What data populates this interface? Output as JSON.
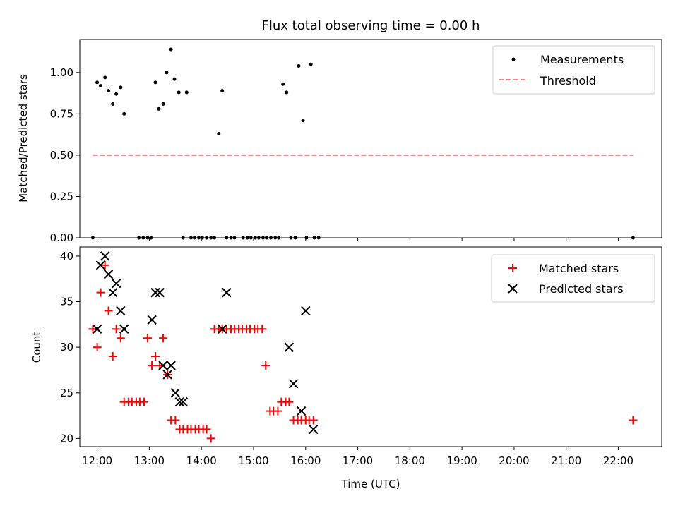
{
  "figure": {
    "title": "Flux total observing time = 0.00 h"
  },
  "chart_data": [
    {
      "type": "scatter",
      "panel": "top",
      "ylabel": "Matched/Predicted stars",
      "xlim": [
        "11:40",
        "22:50"
      ],
      "ylim": [
        0,
        1.2
      ],
      "yticks": [
        "0.00",
        "0.25",
        "0.50",
        "0.75",
        "1.00"
      ],
      "ytick_values": [
        0,
        0.25,
        0.5,
        0.75,
        1.0
      ],
      "grid": false,
      "legend": {
        "position": "upper right",
        "entries": [
          "Measurements",
          "Threshold"
        ]
      },
      "series": [
        {
          "name": "Measurements",
          "color": "#000000",
          "marker": "dot",
          "x": [
            "11:55",
            "12:00",
            "12:04",
            "12:09",
            "12:13",
            "12:18",
            "12:22",
            "12:27",
            "12:31",
            "12:48",
            "12:53",
            "12:58",
            "13:02",
            "13:07",
            "13:11",
            "13:16",
            "13:20",
            "13:25",
            "13:29",
            "13:34",
            "13:39",
            "13:43",
            "13:48",
            "13:52",
            "13:57",
            "14:01",
            "14:06",
            "14:11",
            "14:15",
            "14:20",
            "14:24",
            "14:29",
            "14:34",
            "14:38",
            "14:48",
            "14:53",
            "14:57",
            "15:02",
            "15:06",
            "15:11",
            "15:15",
            "15:20",
            "15:25",
            "15:29",
            "15:34",
            "15:38",
            "15:43",
            "15:48",
            "15:52",
            "15:57",
            "16:01",
            "16:06",
            "16:10",
            "16:15",
            "22:17"
          ],
          "y": [
            0.0,
            0.94,
            0.92,
            0.97,
            0.89,
            0.81,
            0.87,
            0.91,
            0.75,
            0.0,
            0.0,
            0.0,
            0.0,
            0.94,
            0.78,
            0.81,
            1.0,
            1.14,
            0.96,
            0.88,
            0.0,
            0.88,
            0.0,
            0.0,
            0.0,
            0.0,
            0.0,
            0.0,
            0.0,
            0.63,
            0.89,
            0.0,
            0.0,
            0.0,
            0.0,
            0.0,
            0.0,
            0.0,
            0.0,
            0.0,
            0.0,
            0.0,
            0.0,
            0.0,
            0.93,
            0.88,
            0.0,
            0.0,
            1.04,
            0.71,
            0.0,
            1.05,
            0.0,
            0.0,
            0.0
          ]
        },
        {
          "name": "Threshold",
          "color": "#ff7f7f",
          "style": "dashed",
          "x": [
            "11:55",
            "22:17"
          ],
          "y": [
            0.5,
            0.5
          ]
        }
      ]
    },
    {
      "type": "scatter",
      "panel": "bottom",
      "xlabel": "Time (UTC)",
      "ylabel": "Count",
      "xlim": [
        "11:40",
        "22:50"
      ],
      "ylim": [
        19.1,
        41.0
      ],
      "xticks": [
        "12:00",
        "13:00",
        "14:00",
        "15:00",
        "16:00",
        "17:00",
        "18:00",
        "19:00",
        "20:00",
        "21:00",
        "22:00"
      ],
      "yticks": [
        "20",
        "25",
        "30",
        "35",
        "40"
      ],
      "ytick_values": [
        20,
        25,
        30,
        35,
        40
      ],
      "grid": false,
      "legend": {
        "position": "upper right",
        "entries": [
          "Matched stars",
          "Predicted stars"
        ]
      },
      "series": [
        {
          "name": "Matched stars",
          "color": "#ff0000",
          "marker": "plus",
          "x": [
            "11:55",
            "12:00",
            "12:04",
            "12:09",
            "12:13",
            "12:18",
            "12:22",
            "12:27",
            "12:31",
            "12:36",
            "12:40",
            "12:45",
            "12:49",
            "12:54",
            "12:58",
            "13:03",
            "13:07",
            "13:12",
            "13:16",
            "13:21",
            "13:25",
            "13:30",
            "13:35",
            "13:39",
            "13:44",
            "13:48",
            "13:53",
            "13:57",
            "14:02",
            "14:06",
            "14:11",
            "14:15",
            "14:20",
            "14:24",
            "14:29",
            "14:34",
            "14:38",
            "14:43",
            "14:47",
            "14:52",
            "14:56",
            "15:01",
            "15:05",
            "15:10",
            "15:14",
            "15:19",
            "15:23",
            "15:28",
            "15:32",
            "15:37",
            "15:41",
            "15:46",
            "15:51",
            "15:55",
            "16:00",
            "16:04",
            "16:09",
            "22:17"
          ],
          "y": [
            32,
            30,
            36,
            39,
            34,
            29,
            32,
            31,
            24,
            24,
            24,
            24,
            24,
            24,
            31,
            28,
            29,
            28,
            31,
            27,
            22,
            22,
            21,
            21,
            21,
            21,
            21,
            21,
            21,
            21,
            20,
            32,
            32,
            32,
            32,
            32,
            32,
            32,
            32,
            32,
            32,
            32,
            32,
            32,
            28,
            23,
            23,
            23,
            24,
            24,
            24,
            22,
            22,
            22,
            22,
            22,
            22,
            22
          ]
        },
        {
          "name": "Predicted stars",
          "color": "#000000",
          "marker": "x",
          "x": [
            "12:00",
            "12:04",
            "12:09",
            "12:13",
            "12:18",
            "12:22",
            "12:27",
            "12:31",
            "13:03",
            "13:07",
            "13:12",
            "13:16",
            "13:21",
            "13:25",
            "13:30",
            "13:35",
            "13:39",
            "14:24",
            "14:29",
            "15:41",
            "15:46",
            "15:55",
            "16:00",
            "16:09"
          ],
          "y": [
            32,
            39,
            40,
            38,
            36,
            37,
            34,
            32,
            33,
            36,
            36,
            28,
            27,
            28,
            25,
            24,
            24,
            32,
            36,
            30,
            26,
            23,
            34,
            21
          ]
        }
      ]
    }
  ]
}
